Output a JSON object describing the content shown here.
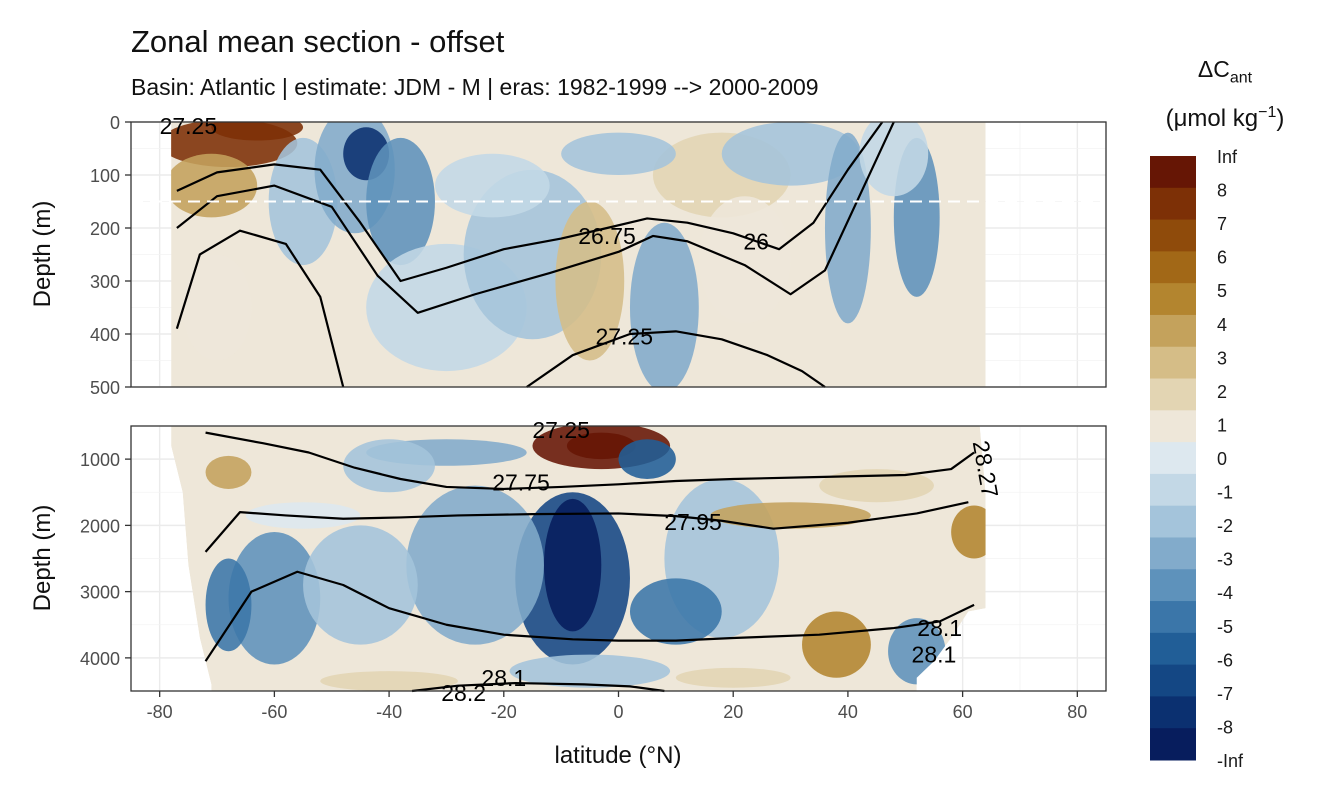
{
  "title": "Zonal mean section - offset",
  "subtitle": "Basin: Atlantic | estimate: JDM - M | eras: 1982-1999 --> 2000-2009",
  "legend": {
    "title_base": "ΔC",
    "title_sub": "ant",
    "unit_prefix": "(μmol kg",
    "unit_sup": "−1",
    "unit_suffix": ")"
  },
  "chart_data": {
    "type": "heatmap",
    "xlabel": "latitude (°N)",
    "ylabel": "Depth (m)",
    "xlim": [
      -85,
      85
    ],
    "x_ticks": [
      -80,
      -60,
      -40,
      -20,
      0,
      20,
      40,
      60,
      80
    ],
    "x_tick_labels": [
      "-80",
      "-60",
      "-40",
      "-20",
      "0",
      "20",
      "40",
      "60",
      "80"
    ],
    "panels": [
      {
        "name": "upper",
        "ylim": [
          0,
          500
        ],
        "y_ticks": [
          0,
          100,
          200,
          300,
          400,
          500
        ],
        "y_tick_labels": [
          "0",
          "100",
          "200",
          "300",
          "400",
          "500"
        ],
        "reference_line_depth": 150,
        "density_contours": [
          {
            "label": "26",
            "points": [
              [
                -77,
                130
              ],
              [
                -70,
                95
              ],
              [
                -60,
                80
              ],
              [
                -52,
                90
              ],
              [
                -45,
                190
              ],
              [
                -38,
                300
              ],
              [
                -30,
                275
              ],
              [
                -20,
                240
              ],
              [
                -10,
                220
              ],
              [
                -2,
                200
              ],
              [
                5,
                182
              ],
              [
                12,
                190
              ],
              [
                20,
                210
              ],
              [
                28,
                240
              ],
              [
                34,
                190
              ],
              [
                40,
                90
              ],
              [
                46,
                0
              ]
            ]
          },
          {
            "label": "26.75",
            "points": [
              [
                -77,
                200
              ],
              [
                -70,
                140
              ],
              [
                -60,
                120
              ],
              [
                -50,
                160
              ],
              [
                -42,
                290
              ],
              [
                -35,
                360
              ],
              [
                -25,
                325
              ],
              [
                -12,
                285
              ],
              [
                0,
                245
              ],
              [
                6,
                215
              ],
              [
                12,
                225
              ],
              [
                22,
                270
              ],
              [
                30,
                325
              ],
              [
                36,
                280
              ],
              [
                42,
                140
              ],
              [
                48,
                0
              ]
            ]
          },
          {
            "label": "27.25",
            "points": [
              [
                -77,
                390
              ],
              [
                -73,
                250
              ],
              [
                -66,
                205
              ],
              [
                -58,
                230
              ],
              [
                -52,
                330
              ],
              [
                -48,
                500
              ]
            ]
          },
          {
            "label": "",
            "points": [
              [
                -16,
                500
              ],
              [
                -8,
                440
              ],
              [
                2,
                400
              ],
              [
                10,
                395
              ],
              [
                18,
                410
              ],
              [
                26,
                440
              ],
              [
                32,
                470
              ],
              [
                36,
                500
              ]
            ]
          }
        ],
        "contour_labels": [
          {
            "text": "26.75",
            "lat": -2,
            "depth": 215
          },
          {
            "text": "26",
            "lat": 24,
            "depth": 225
          },
          {
            "text": "27.25",
            "lat": 1,
            "depth": 405
          },
          {
            "text": "27.25",
            "lat": -75,
            "depth": 8
          }
        ]
      },
      {
        "name": "lower",
        "ylim": [
          500,
          4500
        ],
        "y_ticks": [
          1000,
          2000,
          3000,
          4000
        ],
        "y_tick_labels": [
          "1000",
          "2000",
          "3000",
          "4000"
        ],
        "density_contours": [
          {
            "label": "27.75",
            "points": [
              [
                -72,
                600
              ],
              [
                -62,
                760
              ],
              [
                -54,
                900
              ],
              [
                -46,
                1130
              ],
              [
                -38,
                1300
              ],
              [
                -30,
                1420
              ],
              [
                -20,
                1450
              ],
              [
                -10,
                1420
              ],
              [
                0,
                1380
              ],
              [
                10,
                1330
              ],
              [
                20,
                1300
              ],
              [
                35,
                1270
              ],
              [
                50,
                1240
              ],
              [
                58,
                1150
              ],
              [
                62,
                900
              ]
            ]
          },
          {
            "label": "27.95",
            "points": [
              [
                -72,
                2400
              ],
              [
                -66,
                1800
              ],
              [
                -58,
                1850
              ],
              [
                -48,
                1900
              ],
              [
                -38,
                1880
              ],
              [
                -28,
                1850
              ],
              [
                -15,
                1830
              ],
              [
                0,
                1820
              ],
              [
                10,
                1860
              ],
              [
                18,
                1930
              ],
              [
                27,
                2050
              ],
              [
                40,
                1960
              ],
              [
                52,
                1820
              ],
              [
                61,
                1650
              ]
            ]
          },
          {
            "label": "28.1",
            "points": [
              [
                -72,
                4050
              ],
              [
                -64,
                3000
              ],
              [
                -56,
                2700
              ],
              [
                -48,
                2900
              ],
              [
                -40,
                3250
              ],
              [
                -30,
                3500
              ],
              [
                -20,
                3650
              ],
              [
                -8,
                3720
              ],
              [
                0,
                3740
              ],
              [
                10,
                3740
              ],
              [
                20,
                3700
              ],
              [
                35,
                3650
              ],
              [
                48,
                3550
              ],
              [
                56,
                3450
              ],
              [
                62,
                3200
              ]
            ]
          },
          {
            "label": "28.2",
            "points": [
              [
                -36,
                4500
              ],
              [
                -28,
                4420
              ],
              [
                -18,
                4380
              ],
              [
                -6,
                4400
              ],
              [
                2,
                4430
              ],
              [
                8,
                4500
              ]
            ]
          }
        ],
        "contour_labels": [
          {
            "text": "27.25",
            "lat": -10,
            "depth": 560
          },
          {
            "text": "27.75",
            "lat": -17,
            "depth": 1350
          },
          {
            "text": "27.95",
            "lat": 13,
            "depth": 1950
          },
          {
            "text": "28.1",
            "lat": -20,
            "depth": 4300
          },
          {
            "text": "28.2",
            "lat": -27,
            "depth": 4530
          },
          {
            "text": "28.1",
            "lat": 56,
            "depth": 3550
          },
          {
            "text": "28.1",
            "lat": 55,
            "depth": 3950
          },
          {
            "text": "28.27",
            "lat": 64,
            "depth": 1150
          }
        ]
      }
    ],
    "colorbar": {
      "labels": [
        "Inf",
        "8",
        "7",
        "6",
        "5",
        "4",
        "3",
        "2",
        "1",
        "0",
        "-1",
        "-2",
        "-3",
        "-4",
        "-5",
        "-6",
        "-7",
        "-8",
        "-Inf"
      ],
      "colors": [
        "#661605",
        "#7d3006",
        "#8f4b0b",
        "#a26817",
        "#b3852f",
        "#c4a25c",
        "#d5bd87",
        "#e3d5b3",
        "#eee7d9",
        "#dde8ef",
        "#c3d8e6",
        "#a4c4db",
        "#82abcb",
        "#5e92bb",
        "#3b76a9",
        "#215e97",
        "#144784",
        "#0b3070",
        "#071d5d"
      ]
    }
  }
}
